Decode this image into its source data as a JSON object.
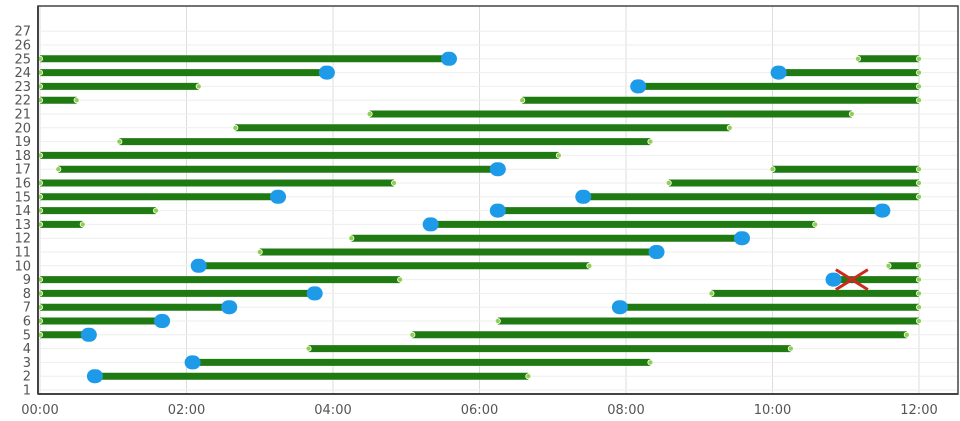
{
  "chart_data": {
    "type": "timeline",
    "grid": true,
    "xlim": [
      "00:00",
      "12:00"
    ],
    "ylim": [
      1,
      27
    ],
    "x_ticks": [
      "00:00",
      "02:00",
      "04:00",
      "06:00",
      "08:00",
      "10:00",
      "12:00"
    ],
    "y_ticks": [
      "1",
      "2",
      "3",
      "4",
      "5",
      "6",
      "7",
      "8",
      "9",
      "10",
      "11",
      "12",
      "13",
      "14",
      "15",
      "16",
      "17",
      "18",
      "19",
      "20",
      "21",
      "22",
      "23",
      "24",
      "25",
      "26",
      "27"
    ],
    "colors": {
      "bar": "#1f7a12",
      "marker": "#1e9be8",
      "endpoint": "#8fd14f",
      "cross": "#cc2a1e",
      "grid": "#dddddd",
      "axis": "#444444"
    },
    "bars": [
      {
        "row": 2,
        "start": "00:45",
        "end": "06:40",
        "marker": "00:45"
      },
      {
        "row": 3,
        "start": "02:05",
        "end": "08:20",
        "marker": "02:05"
      },
      {
        "row": 4,
        "start": "03:40",
        "end": "10:15"
      },
      {
        "row": 5,
        "start": "00:00",
        "end": "00:40",
        "marker": "00:40"
      },
      {
        "row": 5,
        "start": "05:05",
        "end": "11:50"
      },
      {
        "row": 6,
        "start": "00:00",
        "end": "01:40",
        "marker": "01:40"
      },
      {
        "row": 6,
        "start": "06:15",
        "end": "12:00"
      },
      {
        "row": 7,
        "start": "00:00",
        "end": "02:35",
        "marker": "02:35"
      },
      {
        "row": 7,
        "start": "07:55",
        "end": "12:00",
        "marker": "07:55"
      },
      {
        "row": 8,
        "start": "00:00",
        "end": "03:45",
        "marker": "03:45"
      },
      {
        "row": 8,
        "start": "09:10",
        "end": "12:00"
      },
      {
        "row": 9,
        "start": "00:00",
        "end": "04:55"
      },
      {
        "row": 9,
        "start": "10:50",
        "end": "12:00",
        "marker": "10:50",
        "cross": "11:05"
      },
      {
        "row": 10,
        "start": "02:10",
        "end": "07:30",
        "marker": "02:10"
      },
      {
        "row": 10,
        "start": "11:35",
        "end": "12:00"
      },
      {
        "row": 11,
        "start": "03:00",
        "end": "08:25",
        "marker": "08:25"
      },
      {
        "row": 12,
        "start": "04:15",
        "end": "09:35",
        "marker": "09:35"
      },
      {
        "row": 13,
        "start": "00:00",
        "end": "00:35"
      },
      {
        "row": 13,
        "start": "05:20",
        "end": "10:35",
        "marker": "05:20"
      },
      {
        "row": 14,
        "start": "00:00",
        "end": "01:35"
      },
      {
        "row": 14,
        "start": "06:15",
        "end": "11:30",
        "marker": "06:15",
        "marker2": "11:30"
      },
      {
        "row": 15,
        "start": "00:00",
        "end": "03:15",
        "marker": "03:15"
      },
      {
        "row": 15,
        "start": "07:25",
        "end": "12:00",
        "marker": "07:25"
      },
      {
        "row": 16,
        "start": "00:00",
        "end": "04:50"
      },
      {
        "row": 16,
        "start": "08:35",
        "end": "12:00"
      },
      {
        "row": 17,
        "start": "00:15",
        "end": "06:15",
        "marker": "06:15"
      },
      {
        "row": 17,
        "start": "10:00",
        "end": "12:00"
      },
      {
        "row": 18,
        "start": "00:00",
        "end": "07:05"
      },
      {
        "row": 19,
        "start": "01:05",
        "end": "08:20"
      },
      {
        "row": 20,
        "start": "02:40",
        "end": "09:25"
      },
      {
        "row": 21,
        "start": "04:30",
        "end": "11:05"
      },
      {
        "row": 22,
        "start": "00:00",
        "end": "00:30"
      },
      {
        "row": 22,
        "start": "06:35",
        "end": "12:00"
      },
      {
        "row": 23,
        "start": "00:00",
        "end": "02:10"
      },
      {
        "row": 23,
        "start": "08:10",
        "end": "12:00",
        "marker": "08:10"
      },
      {
        "row": 24,
        "start": "00:00",
        "end": "03:55",
        "marker": "03:55"
      },
      {
        "row": 24,
        "start": "10:05",
        "end": "12:00",
        "marker": "10:05"
      },
      {
        "row": 25,
        "start": "00:00",
        "end": "05:35",
        "marker": "05:35"
      },
      {
        "row": 25,
        "start": "11:10",
        "end": "12:00"
      }
    ]
  }
}
